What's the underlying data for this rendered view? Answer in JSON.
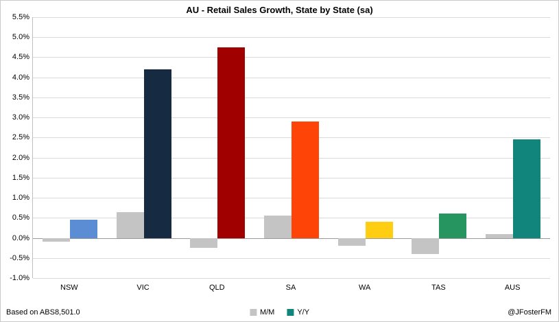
{
  "chart_data": {
    "type": "bar",
    "title": "AU - Retail Sales Growth, State by State (sa)",
    "categories": [
      "NSW",
      "VIC",
      "QLD",
      "SA",
      "WA",
      "TAS",
      "AUS"
    ],
    "series": [
      {
        "name": "M/M",
        "color": "#c4c4c4",
        "values": [
          -0.1,
          0.65,
          -0.25,
          0.55,
          -0.2,
          -0.4,
          0.1
        ]
      },
      {
        "name": "Y/Y",
        "colors": [
          "#5b8dd5",
          "#162b41",
          "#a00000",
          "#ff4408",
          "#ffce12",
          "#27955f",
          "#11857c"
        ],
        "values": [
          0.45,
          4.2,
          4.75,
          2.9,
          0.4,
          0.6,
          2.45
        ]
      }
    ],
    "ylim": [
      -1.0,
      5.5
    ],
    "ytick_step": 0.5,
    "ytick_labels": [
      "5.5%",
      "5.0%",
      "4.5%",
      "4.0%",
      "3.5%",
      "3.0%",
      "2.5%",
      "2.0%",
      "1.5%",
      "1.0%",
      "0.5%",
      "0.0%",
      "-0.5%",
      "-1.0%"
    ],
    "grid": "horizontal",
    "legend_position": "bottom-center",
    "legend": [
      {
        "label": "M/M",
        "color": "#c4c4c4"
      },
      {
        "label": "Y/Y",
        "color": "#11857c"
      }
    ],
    "source": "Based on ABS8,501.0",
    "credit": "@JFosterFM"
  }
}
